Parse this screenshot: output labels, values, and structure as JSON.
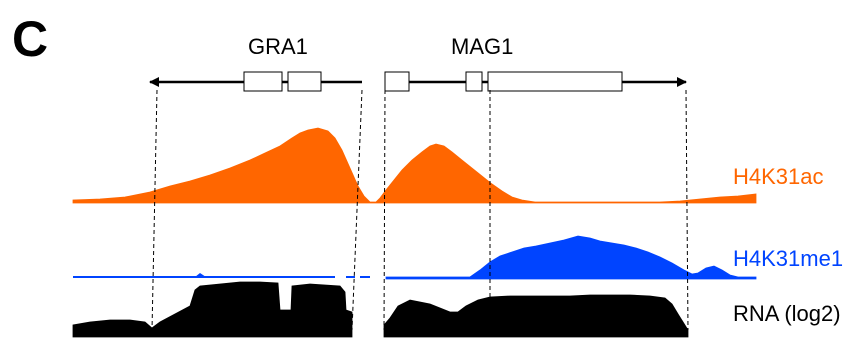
{
  "panel": {
    "label": "C",
    "genes": [
      {
        "name": "GRA1",
        "direction": "left"
      },
      {
        "name": "MAG1",
        "direction": "right"
      }
    ],
    "tracks": [
      {
        "label": "H4K31ac",
        "color": "#ff6600"
      },
      {
        "label": "H4K31me1",
        "color": "#0044ff"
      },
      {
        "label": "RNA (log2)",
        "color": "#000000"
      }
    ]
  }
}
